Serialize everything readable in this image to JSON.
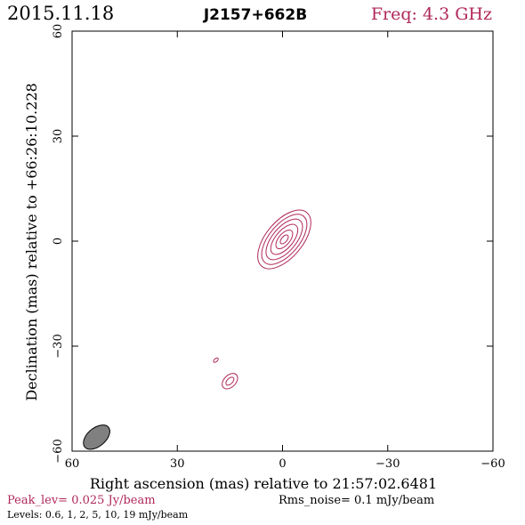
{
  "header": {
    "date": "2015.11.18",
    "source": "J2157+662B",
    "freq": "Freq: 4.3 GHz"
  },
  "footer": {
    "peak": "Peak_lev=  0.025 Jy/beam",
    "rms": "Rms_noise=  0.1 mJy/beam",
    "levels": "Levels: 0.6,   1,   2,   5,   10,   19 mJy/beam"
  },
  "colors": {
    "accent": "#b0285a",
    "axis": "#000000",
    "beam_fill": "#808080"
  },
  "chart_data": {
    "type": "contour",
    "xlabel": "Right ascension (mas) relative to 21:57:02.6481",
    "ylabel": "Declination (mas) relative to +66:26:10.228",
    "xlim": [
      60,
      -60
    ],
    "ylim": [
      -60,
      60
    ],
    "x_ticks": [
      60,
      30,
      0,
      -30,
      -60
    ],
    "y_ticks": [
      -60,
      -30,
      0,
      30,
      60
    ],
    "x_tick_labels": [
      "60",
      "30",
      "0",
      "−30",
      "−60"
    ],
    "y_tick_labels": [
      "−60",
      "−30",
      "0",
      "30",
      "60"
    ],
    "contour_levels_mJy": [
      0.6,
      1,
      2,
      5,
      10,
      19
    ],
    "components": [
      {
        "x": -0.5,
        "y": 0.5,
        "pa": 50,
        "contours": [
          {
            "a": 10.0,
            "b": 5.2
          },
          {
            "a": 8.6,
            "b": 4.3
          },
          {
            "a": 7.0,
            "b": 3.4
          },
          {
            "a": 5.2,
            "b": 2.5
          },
          {
            "a": 3.2,
            "b": 1.6
          },
          {
            "a": 1.5,
            "b": 0.8
          }
        ]
      },
      {
        "x": 15,
        "y": -40,
        "pa": 45,
        "contours": [
          {
            "a": 2.6,
            "b": 1.7
          },
          {
            "a": 1.4,
            "b": 0.8
          }
        ]
      },
      {
        "x": 19,
        "y": -34,
        "pa": 40,
        "contours": [
          {
            "a": 0.8,
            "b": 0.45
          }
        ]
      }
    ],
    "beam": {
      "x": 53,
      "y": -56,
      "major": 4.4,
      "minor": 2.6,
      "pa": 40
    }
  }
}
